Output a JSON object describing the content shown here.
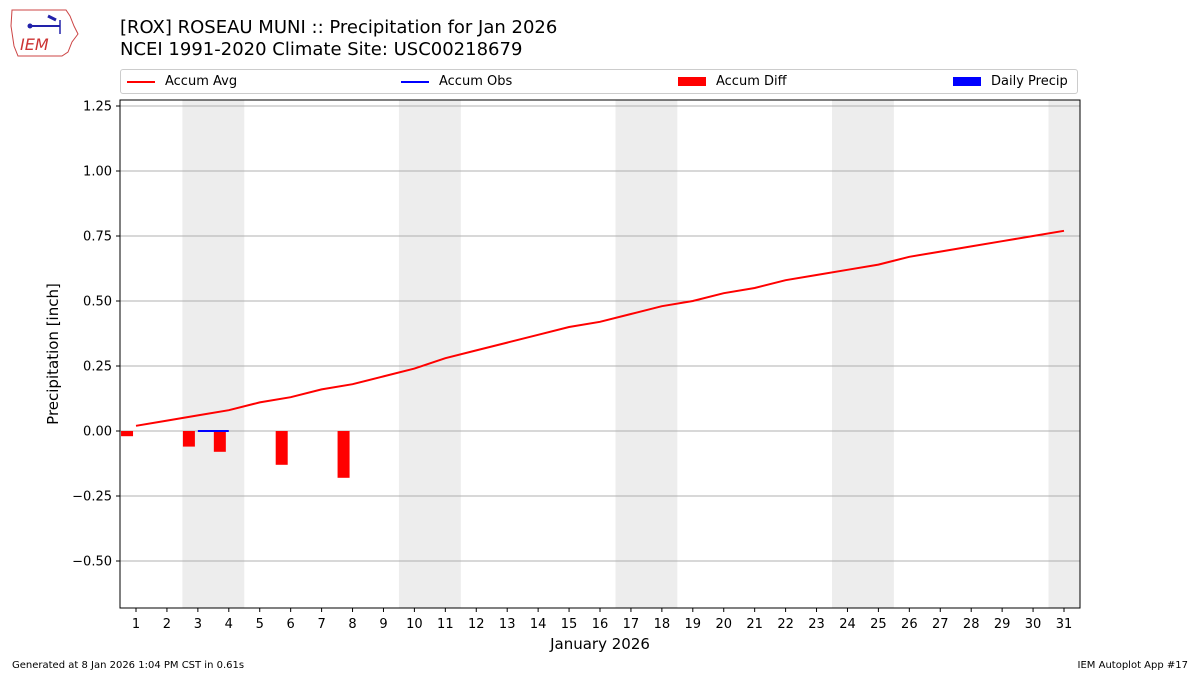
{
  "header": {
    "title_line1": "[ROX] ROSEAU MUNI :: Precipitation for Jan 2026",
    "title_line2": "NCEI 1991-2020 Climate Site: USC00218679",
    "logo_text": "IEM"
  },
  "legend": {
    "items": [
      {
        "label": "Accum Avg",
        "type": "line",
        "color": "#ff0000"
      },
      {
        "label": "Accum Obs",
        "type": "line",
        "color": "#0000ff"
      },
      {
        "label": "Accum Diff",
        "type": "bar",
        "color": "#ff0000"
      },
      {
        "label": "Daily Precip",
        "type": "bar",
        "color": "#0000ff"
      }
    ]
  },
  "footer": {
    "generated": "Generated at 8 Jan 2026 1:04 PM CST in 0.61s",
    "app": "IEM Autoplot App #17"
  },
  "chart_data": {
    "type": "line",
    "title": "[ROX] ROSEAU MUNI :: Precipitation for Jan 2026 / NCEI 1991-2020 Climate Site: USC00218679",
    "xlabel": "January 2026",
    "ylabel": "Precipitation [inch]",
    "ylim": [
      -0.67,
      1.27
    ],
    "yticks": [
      -0.5,
      -0.25,
      0.0,
      0.25,
      0.5,
      0.75,
      1.0,
      1.25
    ],
    "ytick_labels": [
      "−0.50",
      "−0.25",
      "0.00",
      "0.25",
      "0.50",
      "0.75",
      "1.00",
      "1.25"
    ],
    "x": [
      1,
      2,
      3,
      4,
      5,
      6,
      7,
      8,
      9,
      10,
      11,
      12,
      13,
      14,
      15,
      16,
      17,
      18,
      19,
      20,
      21,
      22,
      23,
      24,
      25,
      26,
      27,
      28,
      29,
      30,
      31
    ],
    "weekend_shading": [
      [
        3,
        4
      ],
      [
        10,
        11
      ],
      [
        17,
        18
      ],
      [
        24,
        25
      ],
      [
        31,
        31
      ]
    ],
    "grid": "y",
    "legend_position": "top",
    "series": [
      {
        "name": "Accum Avg",
        "type": "line",
        "color": "#ff0000",
        "values": [
          0.02,
          0.04,
          0.06,
          0.08,
          0.11,
          0.13,
          0.16,
          0.18,
          0.21,
          0.24,
          0.28,
          0.31,
          0.34,
          0.37,
          0.4,
          0.42,
          0.45,
          0.48,
          0.5,
          0.53,
          0.55,
          0.58,
          0.6,
          0.62,
          0.64,
          0.67,
          0.69,
          0.71,
          0.73,
          0.75,
          0.77
        ]
      },
      {
        "name": "Accum Obs",
        "type": "line",
        "color": "#0000ff",
        "x": [
          3,
          4
        ],
        "values": [
          0.0,
          0.0
        ]
      },
      {
        "name": "Accum Diff",
        "type": "bar",
        "color": "#ff0000",
        "x": [
          1,
          3,
          4,
          6,
          8
        ],
        "values": [
          -0.02,
          -0.06,
          -0.08,
          -0.13,
          -0.18
        ]
      },
      {
        "name": "Daily Precip",
        "type": "bar",
        "color": "#0000ff",
        "x": [],
        "values": []
      }
    ]
  }
}
